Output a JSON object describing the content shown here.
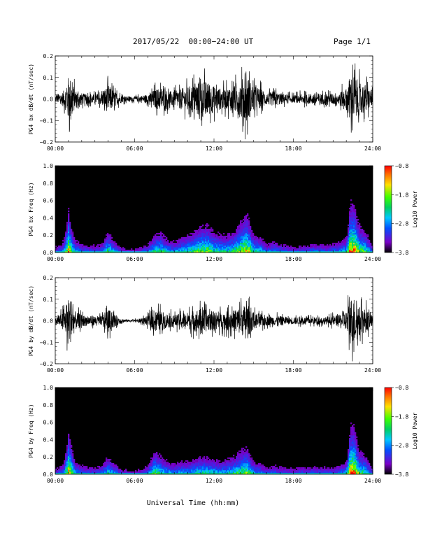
{
  "header": {
    "title": "2017/05/22  00:00−24:00 UT",
    "page": "Page 1/1"
  },
  "footer": {
    "xlabel": "Universal Time (hh:mm)"
  },
  "colors": {
    "trace": "#000000",
    "background": "#ffffff",
    "spectrogram_background": "#000000",
    "colorbar": [
      "#000000",
      "#7a00c8",
      "#0050ff",
      "#00c8ff",
      "#00d060",
      "#40ff00",
      "#ffe000",
      "#ff7000",
      "#ff0000"
    ]
  },
  "chart_data": [
    {
      "type": "line",
      "id": "bx-waveform",
      "ylabel": "PG4 bx dB/dt (nT/sec)",
      "xlim": [
        "00:00",
        "24:00"
      ],
      "ylim": [
        -0.2,
        0.2
      ],
      "xticks": [
        "00:00",
        "06:00",
        "12:00",
        "18:00",
        "24:00"
      ],
      "yticks": [
        "0.2",
        "0.1",
        "0.0",
        "−0.1",
        "−0.2"
      ],
      "envelope_hours": [
        0,
        0.5,
        0.8,
        1.0,
        1.2,
        1.5,
        2.0,
        2.5,
        3.0,
        3.5,
        4.0,
        4.5,
        5.0,
        5.5,
        6.0,
        6.5,
        7.0,
        7.5,
        8.0,
        8.5,
        9.0,
        9.5,
        10.0,
        10.5,
        11.0,
        11.5,
        12.0,
        12.5,
        13.0,
        13.5,
        14.0,
        14.5,
        15.0,
        15.5,
        16.0,
        16.5,
        17.0,
        17.5,
        18.0,
        18.5,
        19.0,
        19.5,
        20.0,
        20.5,
        21.0,
        21.5,
        22.0,
        22.3,
        22.6,
        23.0,
        23.5,
        24.0
      ],
      "envelope_amplitude": [
        0.03,
        0.05,
        0.1,
        0.2,
        0.17,
        0.08,
        0.05,
        0.04,
        0.04,
        0.05,
        0.12,
        0.06,
        0.03,
        0.02,
        0.02,
        0.03,
        0.04,
        0.08,
        0.1,
        0.07,
        0.06,
        0.09,
        0.1,
        0.13,
        0.16,
        0.15,
        0.11,
        0.09,
        0.09,
        0.11,
        0.16,
        0.2,
        0.1,
        0.09,
        0.05,
        0.06,
        0.05,
        0.04,
        0.03,
        0.04,
        0.04,
        0.05,
        0.05,
        0.04,
        0.05,
        0.06,
        0.09,
        0.2,
        0.2,
        0.14,
        0.12,
        0.05
      ]
    },
    {
      "type": "heatmap",
      "id": "bx-spectrogram",
      "ylabel": "PG4 bx Freq (Hz)",
      "xlim": [
        "00:00",
        "24:00"
      ],
      "ylim": [
        0.0,
        1.0
      ],
      "xticks": [
        "00:00",
        "06:00",
        "12:00",
        "18:00",
        "24:00"
      ],
      "yticks": [
        "1.0",
        "0.8",
        "0.6",
        "0.4",
        "0.2",
        "0.0"
      ],
      "colorbar": {
        "label": "Log10 Power",
        "ticks": [
          "−0.8",
          "−1.8",
          "−2.8",
          "−3.8"
        ],
        "range": [
          -3.8,
          -0.8
        ]
      },
      "activity_hours": [
        0,
        0.5,
        0.8,
        1.0,
        1.2,
        1.5,
        2.0,
        2.5,
        3.0,
        3.5,
        4.0,
        4.5,
        5.0,
        5.5,
        6.0,
        6.5,
        7.0,
        7.5,
        8.0,
        8.5,
        9.0,
        9.5,
        10.0,
        10.5,
        11.0,
        11.5,
        12.0,
        12.5,
        13.0,
        13.5,
        14.0,
        14.5,
        15.0,
        15.5,
        16.0,
        16.5,
        17.0,
        17.5,
        18.0,
        18.5,
        19.0,
        19.5,
        20.0,
        20.5,
        21.0,
        21.5,
        22.0,
        22.3,
        22.6,
        23.0,
        23.5,
        24.0
      ],
      "activity": [
        0.25,
        0.35,
        0.6,
        0.9,
        0.7,
        0.45,
        0.35,
        0.3,
        0.3,
        0.35,
        0.6,
        0.4,
        0.25,
        0.2,
        0.2,
        0.25,
        0.35,
        0.55,
        0.6,
        0.45,
        0.4,
        0.5,
        0.55,
        0.6,
        0.7,
        0.7,
        0.6,
        0.55,
        0.55,
        0.6,
        0.75,
        0.85,
        0.55,
        0.5,
        0.35,
        0.4,
        0.35,
        0.3,
        0.25,
        0.3,
        0.3,
        0.35,
        0.35,
        0.3,
        0.35,
        0.4,
        0.5,
        0.95,
        0.95,
        0.7,
        0.6,
        0.3
      ]
    },
    {
      "type": "line",
      "id": "by-waveform",
      "ylabel": "PG4 by dB/dt (nT/sec)",
      "xlim": [
        "00:00",
        "24:00"
      ],
      "ylim": [
        -0.2,
        0.2
      ],
      "xticks": [
        "00:00",
        "06:00",
        "12:00",
        "18:00",
        "24:00"
      ],
      "yticks": [
        "0.2",
        "0.1",
        "0.0",
        "−0.1",
        "−0.2"
      ],
      "envelope_hours": [
        0,
        0.5,
        0.8,
        1.0,
        1.2,
        1.5,
        2.0,
        2.5,
        3.0,
        3.5,
        4.0,
        4.5,
        5.0,
        5.5,
        6.0,
        6.5,
        7.0,
        7.5,
        8.0,
        8.5,
        9.0,
        9.5,
        10.0,
        10.5,
        11.0,
        11.5,
        12.0,
        12.5,
        13.0,
        13.5,
        14.0,
        14.5,
        15.0,
        15.5,
        16.0,
        16.5,
        17.0,
        17.5,
        18.0,
        18.5,
        19.0,
        19.5,
        20.0,
        20.5,
        21.0,
        21.5,
        22.0,
        22.3,
        22.6,
        23.0,
        23.5,
        24.0
      ],
      "envelope_amplitude": [
        0.03,
        0.06,
        0.12,
        0.2,
        0.18,
        0.08,
        0.05,
        0.04,
        0.04,
        0.04,
        0.1,
        0.05,
        0.02,
        0.01,
        0.01,
        0.02,
        0.04,
        0.09,
        0.08,
        0.06,
        0.05,
        0.06,
        0.07,
        0.09,
        0.1,
        0.09,
        0.08,
        0.07,
        0.08,
        0.09,
        0.12,
        0.14,
        0.07,
        0.06,
        0.04,
        0.04,
        0.04,
        0.03,
        0.03,
        0.03,
        0.03,
        0.03,
        0.03,
        0.03,
        0.04,
        0.05,
        0.08,
        0.2,
        0.2,
        0.12,
        0.1,
        0.04
      ]
    },
    {
      "type": "heatmap",
      "id": "by-spectrogram",
      "ylabel": "PG4 by Freq (Hz)",
      "xlim": [
        "00:00",
        "24:00"
      ],
      "ylim": [
        0.0,
        1.0
      ],
      "xticks": [
        "00:00",
        "06:00",
        "12:00",
        "18:00",
        "24:00"
      ],
      "yticks": [
        "1.0",
        "0.8",
        "0.6",
        "0.4",
        "0.2",
        "0.0"
      ],
      "colorbar": {
        "label": "Log10 Power",
        "ticks": [
          "−0.8",
          "−1.8",
          "−2.8",
          "−3.8"
        ],
        "range": [
          -3.8,
          -0.8
        ]
      },
      "activity_hours": [
        0,
        0.5,
        0.8,
        1.0,
        1.2,
        1.5,
        2.0,
        2.5,
        3.0,
        3.5,
        4.0,
        4.5,
        5.0,
        5.5,
        6.0,
        6.5,
        7.0,
        7.5,
        8.0,
        8.5,
        9.0,
        9.5,
        10.0,
        10.5,
        11.0,
        11.5,
        12.0,
        12.5,
        13.0,
        13.5,
        14.0,
        14.5,
        15.0,
        15.5,
        16.0,
        16.5,
        17.0,
        17.5,
        18.0,
        18.5,
        19.0,
        19.5,
        20.0,
        20.5,
        21.0,
        21.5,
        22.0,
        22.3,
        22.6,
        23.0,
        23.5,
        24.0
      ],
      "activity": [
        0.25,
        0.35,
        0.6,
        0.9,
        0.75,
        0.45,
        0.35,
        0.3,
        0.3,
        0.35,
        0.55,
        0.4,
        0.25,
        0.2,
        0.2,
        0.25,
        0.35,
        0.65,
        0.55,
        0.45,
        0.4,
        0.45,
        0.45,
        0.5,
        0.55,
        0.55,
        0.5,
        0.45,
        0.5,
        0.55,
        0.65,
        0.7,
        0.45,
        0.4,
        0.3,
        0.35,
        0.3,
        0.3,
        0.25,
        0.3,
        0.3,
        0.3,
        0.3,
        0.3,
        0.3,
        0.35,
        0.45,
        0.95,
        0.95,
        0.65,
        0.55,
        0.3
      ]
    }
  ]
}
